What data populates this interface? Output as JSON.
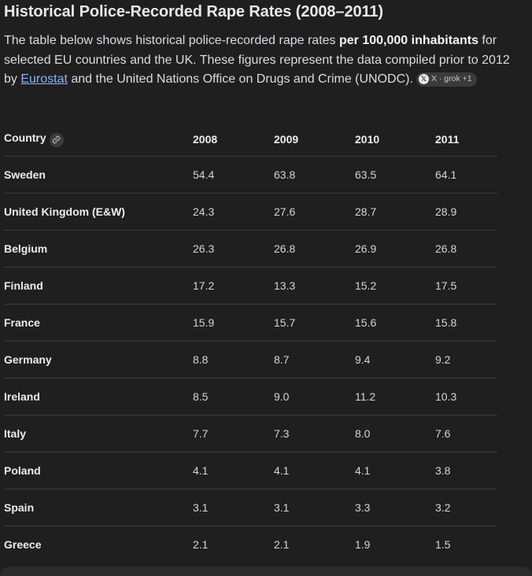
{
  "heading": "Historical Police-Recorded Rape Rates (2008–2011)",
  "intro": {
    "part1": "The table below shows historical police-recorded rape rates ",
    "bold": "per 100,000 inhabitants",
    "part2": " for selected EU countries and the UK. These figures represent the data compiled prior to 2012 by ",
    "link_text": "Eurostat",
    "part3": " and the United Nations Office on Drugs and Crime (UNODC).",
    "source_chip": {
      "icon": "x-logo-icon",
      "label": "X · grok +1"
    }
  },
  "table": {
    "headers": [
      "Country",
      "2008",
      "2009",
      "2010",
      "2011"
    ],
    "rows": [
      [
        "Sweden",
        "54.4",
        "63.8",
        "63.5",
        "64.1"
      ],
      [
        "United Kingdom (E&W)",
        "24.3",
        "27.6",
        "28.7",
        "28.9"
      ],
      [
        "Belgium",
        "26.3",
        "26.8",
        "26.9",
        "26.8"
      ],
      [
        "Finland",
        "17.2",
        "13.3",
        "15.2",
        "17.5"
      ],
      [
        "France",
        "15.9",
        "15.7",
        "15.6",
        "15.8"
      ],
      [
        "Germany",
        "8.8",
        "8.7",
        "9.4",
        "9.2"
      ],
      [
        "Ireland",
        "8.5",
        "9.0",
        "11.2",
        "10.3"
      ],
      [
        "Italy",
        "7.7",
        "7.3",
        "8.0",
        "7.6"
      ],
      [
        "Poland",
        "4.1",
        "4.1",
        "4.1",
        "3.8"
      ],
      [
        "Spain",
        "3.1",
        "3.1",
        "3.3",
        "3.2"
      ],
      [
        "Greece",
        "2.1",
        "2.1",
        "1.9",
        "1.5"
      ]
    ]
  },
  "colors": {
    "background": "#1f1f1f",
    "link": "#8ab4f8",
    "divider": "#3c3c3c"
  }
}
